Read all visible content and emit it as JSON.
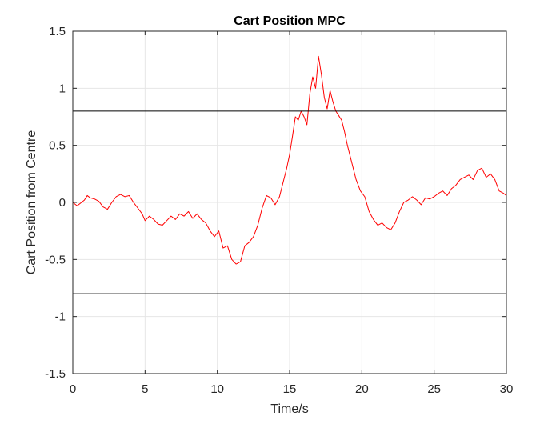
{
  "chart_data": {
    "type": "line",
    "title": "Cart Position MPC",
    "xlabel": "Time/s",
    "ylabel": "Cart Position from Centre",
    "xlim": [
      0,
      30
    ],
    "ylim": [
      -1.5,
      1.5
    ],
    "xticks": [
      0,
      5,
      10,
      15,
      20,
      25,
      30
    ],
    "xtick_labels": [
      "0",
      "5",
      "10",
      "15",
      "20",
      "25",
      "30"
    ],
    "yticks": [
      -1.5,
      -1,
      -0.5,
      0,
      0.5,
      1,
      1.5
    ],
    "ytick_labels": [
      "-1.5",
      "-1",
      "-0.5",
      "0",
      "0.5",
      "1",
      "1.5"
    ],
    "grid": true,
    "legend": "none",
    "series": [
      {
        "color": "#ff0000",
        "x": [
          0,
          0.3,
          0.6,
          0.8,
          1.0,
          1.2,
          1.5,
          1.8,
          2.1,
          2.4,
          2.7,
          3.0,
          3.3,
          3.6,
          3.9,
          4.2,
          4.5,
          4.8,
          5.0,
          5.3,
          5.6,
          5.9,
          6.2,
          6.5,
          6.8,
          7.1,
          7.4,
          7.7,
          8.0,
          8.3,
          8.6,
          8.9,
          9.2,
          9.5,
          9.8,
          10.1,
          10.4,
          10.7,
          11.0,
          11.3,
          11.6,
          11.9,
          12.2,
          12.5,
          12.8,
          13.1,
          13.4,
          13.7,
          14.0,
          14.3,
          14.6,
          14.8,
          15.0,
          15.2,
          15.4,
          15.6,
          15.8,
          16.0,
          16.2,
          16.4,
          16.6,
          16.8,
          17.0,
          17.2,
          17.4,
          17.6,
          17.8,
          18.0,
          18.2,
          18.4,
          18.6,
          18.8,
          19.0,
          19.3,
          19.6,
          19.9,
          20.2,
          20.5,
          20.8,
          21.1,
          21.4,
          21.7,
          22.0,
          22.3,
          22.6,
          22.9,
          23.2,
          23.5,
          23.8,
          24.1,
          24.4,
          24.7,
          25.0,
          25.3,
          25.6,
          25.9,
          26.2,
          26.5,
          26.8,
          27.1,
          27.4,
          27.7,
          28.0,
          28.3,
          28.6,
          28.9,
          29.2,
          29.5,
          29.8,
          30.0
        ],
        "y": [
          0.0,
          -0.03,
          0.0,
          0.02,
          0.06,
          0.04,
          0.03,
          0.01,
          -0.04,
          -0.06,
          0.0,
          0.05,
          0.07,
          0.05,
          0.06,
          0.0,
          -0.05,
          -0.1,
          -0.16,
          -0.12,
          -0.15,
          -0.19,
          -0.2,
          -0.16,
          -0.12,
          -0.15,
          -0.1,
          -0.12,
          -0.08,
          -0.14,
          -0.1,
          -0.15,
          -0.18,
          -0.25,
          -0.3,
          -0.25,
          -0.4,
          -0.38,
          -0.5,
          -0.54,
          -0.52,
          -0.38,
          -0.35,
          -0.3,
          -0.2,
          -0.05,
          0.06,
          0.04,
          -0.02,
          0.05,
          0.2,
          0.3,
          0.42,
          0.58,
          0.75,
          0.72,
          0.8,
          0.75,
          0.68,
          0.95,
          1.1,
          1.0,
          1.28,
          1.12,
          0.92,
          0.82,
          0.98,
          0.88,
          0.8,
          0.76,
          0.72,
          0.62,
          0.5,
          0.35,
          0.2,
          0.1,
          0.05,
          -0.08,
          -0.15,
          -0.2,
          -0.18,
          -0.22,
          -0.24,
          -0.18,
          -0.08,
          0.0,
          0.02,
          0.05,
          0.02,
          -0.02,
          0.04,
          0.03,
          0.05,
          0.08,
          0.1,
          0.06,
          0.12,
          0.15,
          0.2,
          0.22,
          0.24,
          0.2,
          0.28,
          0.3,
          0.22,
          0.25,
          0.2,
          0.1,
          0.08,
          0.06
        ]
      },
      {
        "color": "#000000",
        "x": [
          0,
          30
        ],
        "y": [
          0.8,
          0.8
        ]
      },
      {
        "color": "#000000",
        "x": [
          0,
          30
        ],
        "y": [
          -0.8,
          -0.8
        ]
      }
    ]
  }
}
